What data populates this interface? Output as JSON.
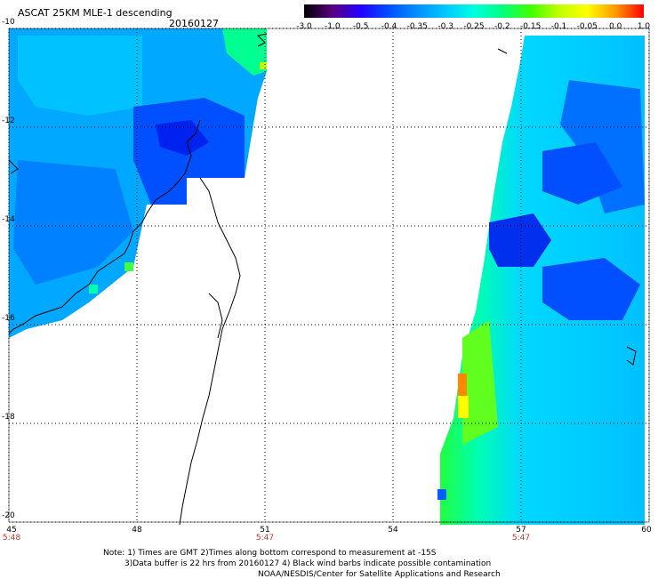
{
  "header": {
    "title": "ASCAT 25KM MLE-1 descending",
    "date": "20160127"
  },
  "colorbar": {
    "labels": [
      "-3.0",
      "-1.0",
      "-0.5",
      "-0.4",
      "-0.35",
      "-0.3",
      "-0.25",
      "-0.2",
      "-0.15",
      "-0.1",
      "-0.05",
      "0.0",
      "1.0"
    ],
    "colors": [
      "#000000",
      "#5a0080",
      "#2200ff",
      "#0050ff",
      "#0090ff",
      "#00c8ff",
      "#00ffe0",
      "#00ff80",
      "#40ff00",
      "#c0ff00",
      "#ffff00",
      "#ff9900",
      "#ff0000"
    ]
  },
  "map": {
    "lon_labels": [
      "45",
      "48",
      "51",
      "54",
      "57",
      "60"
    ],
    "lat_labels": [
      "-10",
      "-12",
      "-14",
      "-16",
      "-18",
      "-20"
    ],
    "time_labels": [
      {
        "lon": 45,
        "text": "5:48"
      },
      {
        "lon": 51,
        "text": "5:47"
      },
      {
        "lon": 57,
        "text": "5:47"
      }
    ],
    "lon_range": [
      45,
      60
    ],
    "lat_range": [
      -10,
      -20
    ],
    "grid": true
  },
  "notes": {
    "line1": "Note: 1) Times are GMT 2)Times along bottom correspond to measurement at -15S",
    "line2": "3)Data buffer is 22 hrs from 20160127 4) Black wind barbs indicate possible contamination",
    "line3": "NOAA/NESDIS/Center for Satellite Applications and Research"
  }
}
